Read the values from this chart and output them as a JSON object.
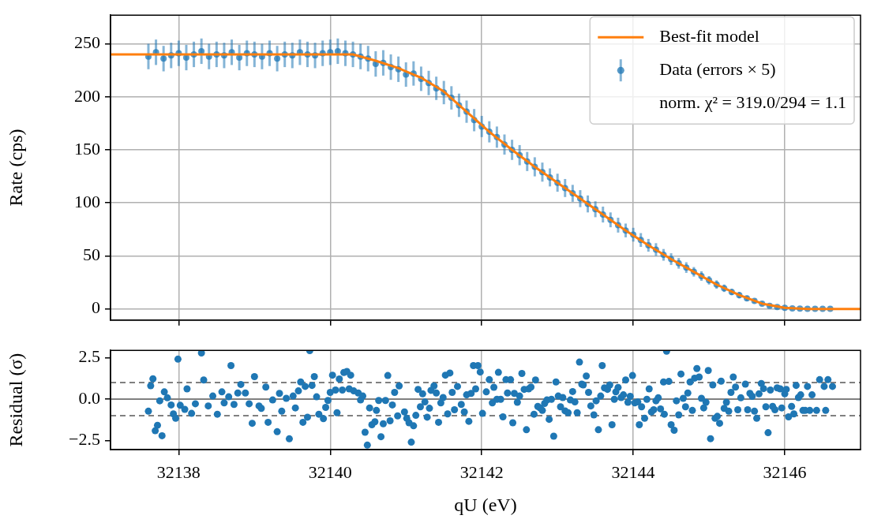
{
  "chart_data": [
    {
      "type": "line",
      "ylabel": "Rate (cps)",
      "xlim": [
        32137.1,
        32147.0
      ],
      "xticks": [
        32138,
        32140,
        32142,
        32144,
        32146
      ],
      "ylim": [
        -10.5,
        277
      ],
      "yticks": [
        0,
        50,
        100,
        150,
        200,
        250
      ],
      "grid": true,
      "legend": "top right",
      "tick_labels": "y",
      "annotations": [
        "norm. χ² = 319.0/294 = 1.1"
      ],
      "series": [
        {
          "type": "line",
          "name": "Best-fit model",
          "color": "#ff7f0e",
          "marker": "none",
          "x": [
            32137.1,
            32140.0,
            32140.3,
            32140.6,
            32140.9,
            32141.2,
            32141.5,
            32141.8,
            32142.1,
            32142.4,
            32142.7,
            32143.0,
            32143.3,
            32143.6,
            32143.9,
            32144.2,
            32144.5,
            32144.8,
            32145.1,
            32145.4,
            32145.7,
            32146.0,
            32146.3,
            32147.0
          ],
          "values": [
            240,
            240,
            240,
            234,
            227,
            218,
            205,
            186,
            167,
            150,
            134,
            119,
            104,
            89,
            74,
            60,
            47,
            35,
            23,
            13,
            5,
            1,
            0,
            0
          ]
        },
        {
          "type": "scatter",
          "name": "Data (errors × 5)",
          "color": "#1f77b4",
          "marker": "circle",
          "x": [
            32137.6,
            32137.7,
            32137.8,
            32137.9,
            32138.0,
            32138.1,
            32138.2,
            32138.3,
            32138.4,
            32138.5,
            32138.6,
            32138.7,
            32138.8,
            32138.9,
            32139.0,
            32139.1,
            32139.2,
            32139.3,
            32139.4,
            32139.5,
            32139.6,
            32139.7,
            32139.8,
            32139.9,
            32140.0,
            32140.1,
            32140.2,
            32140.3,
            32140.4,
            32140.5,
            32140.6,
            32140.7,
            32140.8,
            32140.9,
            32141.0,
            32141.1,
            32141.2,
            32141.3,
            32141.4,
            32141.5,
            32141.6,
            32141.7,
            32141.8,
            32141.9,
            32142.0,
            32142.1,
            32142.2,
            32142.3,
            32142.4,
            32142.5,
            32142.6,
            32142.7,
            32142.8,
            32142.9,
            32143.0,
            32143.1,
            32143.2,
            32143.3,
            32143.4,
            32143.5,
            32143.6,
            32143.7,
            32143.8,
            32143.9,
            32144.0,
            32144.1,
            32144.2,
            32144.3,
            32144.4,
            32144.5,
            32144.6,
            32144.7,
            32144.8,
            32144.9,
            32145.0,
            32145.1,
            32145.2,
            32145.3,
            32145.4,
            32145.5,
            32145.6,
            32145.7,
            32145.8,
            32145.9,
            32146.0,
            32146.1,
            32146.2,
            32146.3,
            32146.4,
            32146.5,
            32146.6
          ],
          "values": [
            238,
            242,
            236,
            239,
            241,
            237,
            240,
            243,
            238,
            240,
            239,
            242,
            237,
            241,
            240,
            238,
            241,
            236,
            240,
            239,
            242,
            240,
            239,
            241,
            242,
            243,
            241,
            240,
            238,
            236,
            231,
            232,
            228,
            226,
            221,
            222,
            217,
            213,
            208,
            204,
            199,
            192,
            186,
            178,
            172,
            167,
            162,
            155,
            150,
            145,
            139,
            134,
            129,
            124,
            119,
            114,
            109,
            104,
            99,
            94,
            89,
            84,
            79,
            74,
            70,
            65,
            60,
            56,
            51,
            47,
            43,
            39,
            35,
            31,
            27,
            23,
            19.5,
            16,
            13,
            10,
            7.5,
            5,
            3,
            1.8,
            1,
            0.5,
            0.3,
            0.2,
            0.1,
            0.1,
            0.1
          ],
          "errors": [
            12,
            12,
            12,
            12,
            12,
            12,
            12,
            12,
            12,
            12,
            12,
            12,
            12,
            12,
            12,
            12,
            12,
            12,
            12,
            12,
            12,
            12,
            12,
            12,
            12,
            12,
            12,
            12,
            12,
            12,
            12,
            12,
            12,
            12,
            11.5,
            11.5,
            11.5,
            11.5,
            11,
            11,
            11,
            11,
            10.5,
            10.5,
            10,
            10,
            10,
            9.5,
            9.5,
            9.5,
            9,
            9,
            9,
            8.5,
            8.5,
            8.5,
            8,
            8,
            8,
            7.5,
            7.5,
            7,
            7,
            6.5,
            6.5,
            6.5,
            6,
            6,
            5.5,
            5.5,
            5,
            5,
            4.5,
            4.5,
            4,
            4,
            3.5,
            3,
            3,
            2.5,
            2,
            1.8,
            1.5,
            1.2,
            1,
            null,
            null,
            null,
            null,
            null,
            null
          ]
        }
      ]
    },
    {
      "type": "scatter",
      "xlabel": "qU (eV)",
      "ylabel": "Residual (σ)",
      "xlim": [
        32137.1,
        32147.0
      ],
      "xticks": [
        32138,
        32140,
        32142,
        32144,
        32146
      ],
      "ylim": [
        -3.05,
        2.95
      ],
      "yticks": [
        {
          "value": -2.5,
          "label": "−2.5"
        },
        {
          "value": 0,
          "label": "0.0"
        },
        {
          "value": 2.5,
          "label": "2.5"
        }
      ],
      "grid": "x",
      "marker": "circle",
      "ref_lines": [
        {
          "axis": "y",
          "value": 0,
          "color": "#808080",
          "line_style": "solid"
        },
        {
          "axis": "y",
          "value": 1,
          "color": "#808080",
          "line_style": "dashed"
        },
        {
          "axis": "y",
          "value": -1,
          "color": "#808080",
          "line_style": "dashed"
        }
      ],
      "series": [
        {
          "color": "#1f77b4",
          "x": [
            32137.6,
            32137.63,
            32137.66,
            32137.69,
            32137.72,
            32137.75,
            32137.78,
            32137.81,
            32137.85,
            32137.9,
            32137.93,
            32137.96,
            32137.99,
            32138.02,
            32138.08,
            32138.11,
            32138.17,
            32138.22,
            32138.3,
            32138.33,
            32138.39,
            32138.45,
            32138.51,
            32138.57,
            32138.6,
            32138.66,
            32138.69,
            32138.73,
            32138.78,
            32138.82,
            32138.88,
            32138.93,
            32138.97,
            32139.0,
            32139.06,
            32139.09,
            32139.15,
            32139.18,
            32139.24,
            32139.3,
            32139.33,
            32139.36,
            32139.42,
            32139.46,
            32139.51,
            32139.54,
            32139.58,
            32139.61,
            32139.64,
            32139.67,
            32139.7,
            32139.73,
            32139.76,
            32139.79,
            32139.82,
            32139.85,
            32139.91,
            32139.94,
            32139.97,
            32140.0,
            32140.03,
            32140.07,
            32140.09,
            32140.12,
            32140.16,
            32140.18,
            32140.22,
            32140.25,
            32140.27,
            32140.31,
            32140.37,
            32140.4,
            32140.43,
            32140.46,
            32140.49,
            32140.52,
            32140.55,
            32140.59,
            32140.61,
            32140.64,
            32140.67,
            32140.7,
            32140.73,
            32140.76,
            32140.79,
            32140.82,
            32140.85,
            32140.89,
            32140.91,
            32140.98,
            32141.01,
            32141.04,
            32141.07,
            32141.1,
            32141.13,
            32141.16,
            32141.19,
            32141.22,
            32141.25,
            32141.28,
            32141.31,
            32141.33,
            32141.37,
            32141.4,
            32141.43,
            32141.46,
            32141.49,
            32141.52,
            32141.55,
            32141.58,
            32141.61,
            32141.64,
            32141.68,
            32141.73,
            32141.77,
            32141.8,
            32141.83,
            32141.86,
            32141.89,
            32141.92,
            32141.95,
            32141.98,
            32142.01,
            32142.06,
            32142.1,
            32142.14,
            32142.16,
            32142.2,
            32142.22,
            32142.25,
            32142.28,
            32142.32,
            32142.34,
            32142.38,
            32142.41,
            32142.43,
            32142.47,
            32142.5,
            32142.53,
            32142.56,
            32142.59,
            32142.62,
            32142.65,
            32142.69,
            32142.71,
            32142.74,
            32142.77,
            32142.8,
            32142.83,
            32142.86,
            32142.89,
            32142.92,
            32142.95,
            32142.98,
            32143.01,
            32143.04,
            32143.07,
            32143.1,
            32143.14,
            32143.17,
            32143.2,
            32143.23,
            32143.26,
            32143.29,
            32143.32,
            32143.34,
            32143.38,
            32143.41,
            32143.44,
            32143.48,
            32143.51,
            32143.54,
            32143.57,
            32143.59,
            32143.62,
            32143.66,
            32143.69,
            32143.72,
            32143.75,
            32143.77,
            32143.8,
            32143.84,
            32143.87,
            32143.9,
            32143.93,
            32143.96,
            32143.99,
            32144.02,
            32144.06,
            32144.08,
            32144.11,
            32144.15,
            32144.18,
            32144.21,
            32144.24,
            32144.27,
            32144.3,
            32144.33,
            32144.36,
            32144.4,
            32144.41,
            32144.44,
            32144.47,
            32144.5,
            32144.54,
            32144.57,
            32144.6,
            32144.63,
            32144.66,
            32144.69,
            32144.72,
            32144.75,
            32144.78,
            32144.81,
            32144.84,
            32144.87,
            32144.9,
            32144.93,
            32144.96,
            32144.99,
            32145.02,
            32145.05,
            32145.08,
            32145.11,
            32145.14,
            32145.16,
            32145.2,
            32145.23,
            32145.26,
            32145.29,
            32145.32,
            32145.35,
            32145.38,
            32145.42,
            32145.48,
            32145.51,
            32145.54,
            32145.57,
            32145.6,
            32145.63,
            32145.66,
            32145.69,
            32145.72,
            32145.75,
            32145.78,
            32145.81,
            32145.84,
            32145.87,
            32145.9,
            32145.94,
            32145.96,
            32146.0,
            32146.02,
            32146.05,
            32146.09,
            32146.12,
            32146.15,
            32146.18,
            32146.21,
            32146.24,
            32146.27,
            32146.3,
            32146.33,
            32146.36,
            32146.42,
            32146.46,
            32146.52,
            32146.54,
            32146.57,
            32146.63
          ],
          "values": [
            -0.73,
            0.81,
            1.23,
            -1.91,
            -1.58,
            -0.1,
            -2.21,
            0.44,
            0.08,
            -0.35,
            -0.89,
            -1.16,
            2.42,
            -0.37,
            -0.62,
            0.62,
            -0.86,
            -0.28,
            2.79,
            1.16,
            -0.41,
            0.19,
            -0.91,
            0.44,
            -0.23,
            0.14,
            2.03,
            -0.32,
            0.37,
            0.89,
            0.37,
            -0.28,
            -1.46,
            1.36,
            -0.41,
            -0.56,
            0.73,
            -1.4,
            -0.05,
            -1.97,
            0.35,
            -0.73,
            0.05,
            -2.4,
            0.19,
            -0.53,
            0.5,
            1.04,
            -1.4,
            0.77,
            -1.09,
            2.93,
            0.83,
            1.36,
            0.14,
            -0.91,
            -1.18,
            -0.5,
            -0.08,
            0.41,
            1.45,
            0.55,
            -0.82,
            1.22,
            0.55,
            1.61,
            1.67,
            0.62,
            1.45,
            0.5,
            0.37,
            -0.05,
            0.19,
            -2.0,
            -2.78,
            -0.53,
            -1.55,
            -1.37,
            -0.68,
            -0.08,
            -2.27,
            -1.49,
            -0.08,
            1.43,
            -1.31,
            -0.35,
            0.41,
            -1.01,
            0.8,
            -0.77,
            -1.16,
            -1.43,
            -2.6,
            -1.61,
            -0.98,
            0.59,
            -0.46,
            0.32,
            -0.17,
            -1.09,
            -0.55,
            0.53,
            0.8,
            0.37,
            -1.4,
            -0.23,
            0.1,
            1.45,
            -0.89,
            1.58,
            0.41,
            -0.64,
            0.77,
            -0.32,
            -0.77,
            0.26,
            -1.34,
            0.35,
            2.03,
            0.62,
            2.03,
            1.64,
            -0.86,
            0.44,
            1.18,
            -0.23,
            0.72,
            -0.01,
            1.62,
            -0.01,
            -1.07,
            1.18,
            0.37,
            1.18,
            -1.43,
            0.35,
            -0.19,
            0.19,
            1.55,
            0.59,
            -1.85,
            0.62,
            0.73,
            -0.91,
            1.16,
            -0.44,
            -0.53,
            -0.68,
            -0.26,
            -0.05,
            -1.22,
            -0.01,
            -2.24,
            1.04,
            0.19,
            -0.46,
            0.1,
            -0.71,
            -0.82,
            -0.05,
            0.46,
            -0.17,
            -0.82,
            2.24,
            0.91,
            0.86,
            1.4,
            0.41,
            -0.41,
            -0.95,
            -0.1,
            -1.85,
            0.19,
            2.03,
            0.68,
            0.59,
            0.86,
            -1.55,
            -0.01,
            0.44,
            0.71,
            0.1,
            0.26,
            1.16,
            -0.19,
            0.17,
            1.43,
            -0.23,
            -0.17,
            -1.55,
            -0.46,
            -1.16,
            -0.01,
            0.62,
            -0.77,
            -0.64,
            -0.1,
            0.08,
            -0.59,
            1.04,
            -0.91,
            2.9,
            1.07,
            -1.55,
            -1.88,
            -0.1,
            -0.95,
            1.52,
            0.05,
            -0.46,
            0.37,
            1.04,
            -0.68,
            1.27,
            1.85,
            1.34,
            0.05,
            -0.53,
            -0.19,
            1.73,
            -2.39,
            0.86,
            -1.16,
            -1.04,
            -1.46,
            1.09,
            -0.56,
            -0.19,
            -0.73,
            0.41,
            1.34,
            0.73,
            -0.64,
            0.08,
            0.91,
            -0.64,
            0.35,
            0.17,
            -0.73,
            -1.16,
            0.32,
            0.95,
            0.64,
            -0.46,
            -2.03,
            0.55,
            -0.44,
            -0.64,
            0.68,
            0.62,
            -0.53,
            0.32,
            0.59,
            -1.07,
            -0.44,
            -0.89,
            0.83,
            0.1,
            0.26,
            -0.68,
            -0.68,
            0.77,
            -0.68,
            0.26,
            -0.68,
            1.18,
            0.77,
            -0.68,
            1.18,
            0.77
          ]
        }
      ]
    }
  ]
}
